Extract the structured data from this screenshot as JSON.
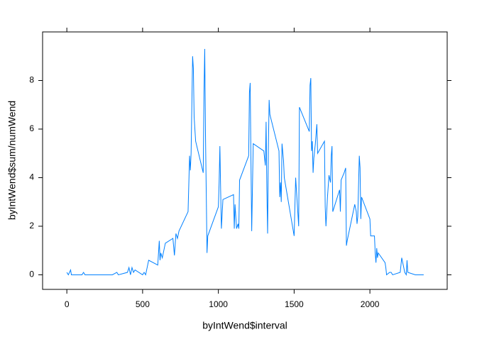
{
  "chart_data": {
    "type": "line",
    "xlabel": "byIntWend$interval",
    "ylabel": "byIntWend$sum/numWend",
    "xlim": [
      -160,
      2510
    ],
    "ylim": [
      -0.6,
      10.0
    ],
    "xticks": [
      0,
      500,
      1000,
      1500,
      2000
    ],
    "yticks": [
      0,
      2,
      4,
      6,
      8
    ],
    "series": [
      {
        "color": "#0080ff",
        "x": [
          0,
          10,
          25,
          30,
          55,
          100,
          110,
          120,
          200,
          300,
          330,
          340,
          400,
          410,
          420,
          430,
          440,
          450,
          500,
          510,
          520,
          530,
          540,
          600,
          610,
          615,
          620,
          630,
          640,
          650,
          700,
          710,
          720,
          730,
          740,
          800,
          810,
          815,
          820,
          830,
          835,
          840,
          850,
          900,
          905,
          910,
          915,
          920,
          925,
          930,
          1000,
          1005,
          1010,
          1015,
          1020,
          1030,
          1100,
          1105,
          1110,
          1120,
          1130,
          1135,
          1140,
          1200,
          1205,
          1210,
          1215,
          1220,
          1230,
          1300,
          1310,
          1315,
          1320,
          1325,
          1330,
          1335,
          1340,
          1400,
          1405,
          1410,
          1415,
          1420,
          1430,
          1435,
          1500,
          1510,
          1530,
          1535,
          1600,
          1605,
          1610,
          1615,
          1620,
          1625,
          1630,
          1640,
          1650,
          1655,
          1700,
          1705,
          1710,
          1720,
          1730,
          1740,
          1745,
          1750,
          1755,
          1800,
          1805,
          1810,
          1830,
          1840,
          1845,
          1850,
          1900,
          1910,
          1915,
          1920,
          1930,
          1935,
          1940,
          1945,
          2000,
          2005,
          2015,
          2030,
          2035,
          2040,
          2045,
          2050,
          2055,
          2100,
          2105,
          2110,
          2130,
          2140,
          2150,
          2200,
          2210,
          2220,
          2230,
          2240,
          2245,
          2250,
          2300,
          2355
        ],
        "values": [
          0.1,
          0,
          0.2,
          0,
          0,
          0,
          0.1,
          0,
          0,
          0,
          0.1,
          0,
          0.1,
          0.3,
          0,
          0.3,
          0.1,
          0.2,
          0,
          0.1,
          0,
          0.3,
          0.6,
          0.4,
          1.4,
          0.6,
          0.9,
          0.7,
          1.0,
          1.3,
          1.5,
          0.8,
          1.7,
          1.5,
          1.8,
          2.6,
          4.9,
          4.3,
          5.0,
          9.0,
          8.5,
          6.5,
          5.5,
          4.2,
          7.5,
          9.3,
          5.8,
          3.4,
          0.9,
          1.6,
          2.8,
          3.8,
          5.3,
          3.5,
          1.9,
          3.1,
          3.3,
          1.9,
          2.9,
          1.9,
          2.1,
          1.9,
          3.9,
          4.9,
          7.5,
          7.9,
          4.7,
          1.8,
          5.4,
          5.1,
          4.5,
          6.3,
          3.5,
          1.7,
          5.2,
          7.2,
          6.6,
          5.1,
          3.2,
          3.8,
          3.0,
          5.4,
          4.7,
          4.0,
          1.6,
          4.0,
          2.0,
          6.9,
          5.9,
          7.8,
          8.1,
          5.1,
          5.5,
          4.2,
          4.8,
          5.4,
          6.2,
          5.0,
          5.5,
          2.8,
          2.0,
          3.2,
          4.1,
          3.8,
          4.9,
          5.3,
          2.6,
          3.5,
          2.6,
          3.9,
          4.2,
          4.4,
          1.2,
          1.4,
          2.9,
          2.6,
          2.1,
          2.4,
          4.9,
          4.4,
          2.3,
          3.2,
          2.3,
          1.6,
          1.6,
          1.6,
          0.9,
          0.5,
          1.1,
          0.7,
          0.9,
          0.5,
          0.3,
          0,
          0.1,
          0.1,
          0,
          0.1,
          0.7,
          0.4,
          0.1,
          0,
          0.6,
          0.1,
          0,
          0
        ]
      }
    ]
  }
}
